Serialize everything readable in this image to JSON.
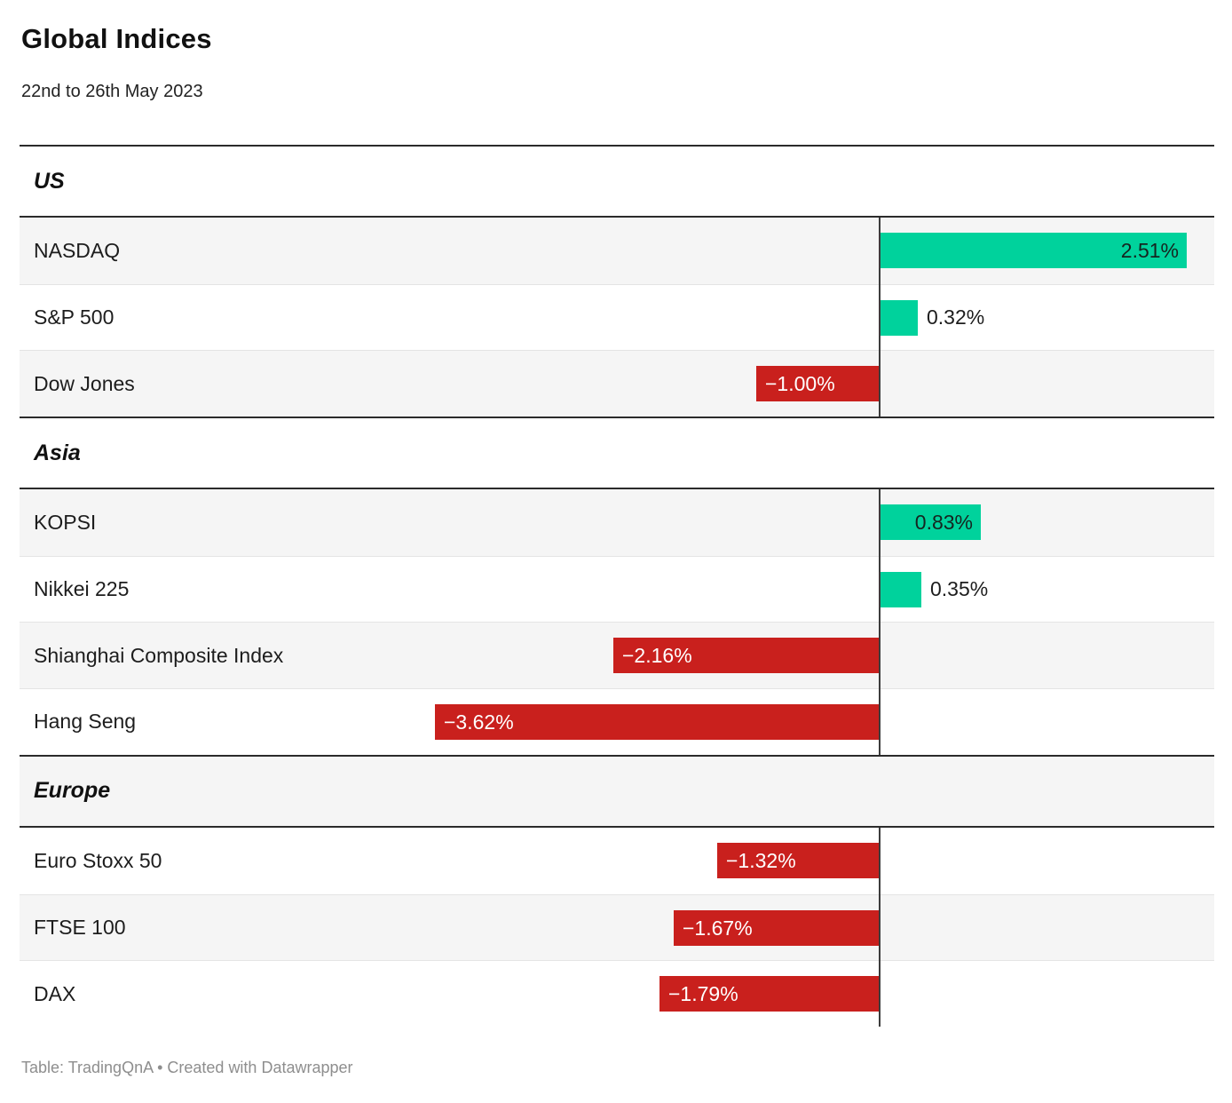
{
  "header": {
    "title": "Global Indices",
    "subtitle": "22nd to 26th May 2023"
  },
  "footer": {
    "text": "Table: TradingQnA • Created with Datawrapper"
  },
  "colors": {
    "positive": "#00d29c",
    "negative": "#c9201d",
    "row_alt": "#f5f5f5",
    "axis": "#3d3d3d"
  },
  "chart_data": {
    "type": "bar",
    "orientation": "horizontal",
    "unit": "%",
    "value_range": [
      -3.62,
      2.51
    ],
    "title": "Global Indices",
    "subtitle": "22nd to 26th May 2023",
    "sections": [
      {
        "label": "US",
        "rows": [
          {
            "label": "NASDAQ",
            "value": 2.51,
            "display": "2.51%"
          },
          {
            "label": "S&P 500",
            "value": 0.32,
            "display": "0.32%"
          },
          {
            "label": "Dow Jones",
            "value": -1.0,
            "display": "−1.00%"
          }
        ]
      },
      {
        "label": "Asia",
        "rows": [
          {
            "label": "KOPSI",
            "value": 0.83,
            "display": "0.83%"
          },
          {
            "label": "Nikkei 225",
            "value": 0.35,
            "display": "0.35%"
          },
          {
            "label": "Shianghai Composite Index",
            "value": -2.16,
            "display": "−2.16%"
          },
          {
            "label": "Hang Seng",
            "value": -3.62,
            "display": "−3.62%"
          }
        ]
      },
      {
        "label": "Europe",
        "rows": [
          {
            "label": "Euro Stoxx 50",
            "value": -1.32,
            "display": "−1.32%"
          },
          {
            "label": "FTSE 100",
            "value": -1.67,
            "display": "−1.67%"
          },
          {
            "label": "DAX",
            "value": -1.79,
            "display": "−1.79%"
          }
        ]
      }
    ]
  }
}
